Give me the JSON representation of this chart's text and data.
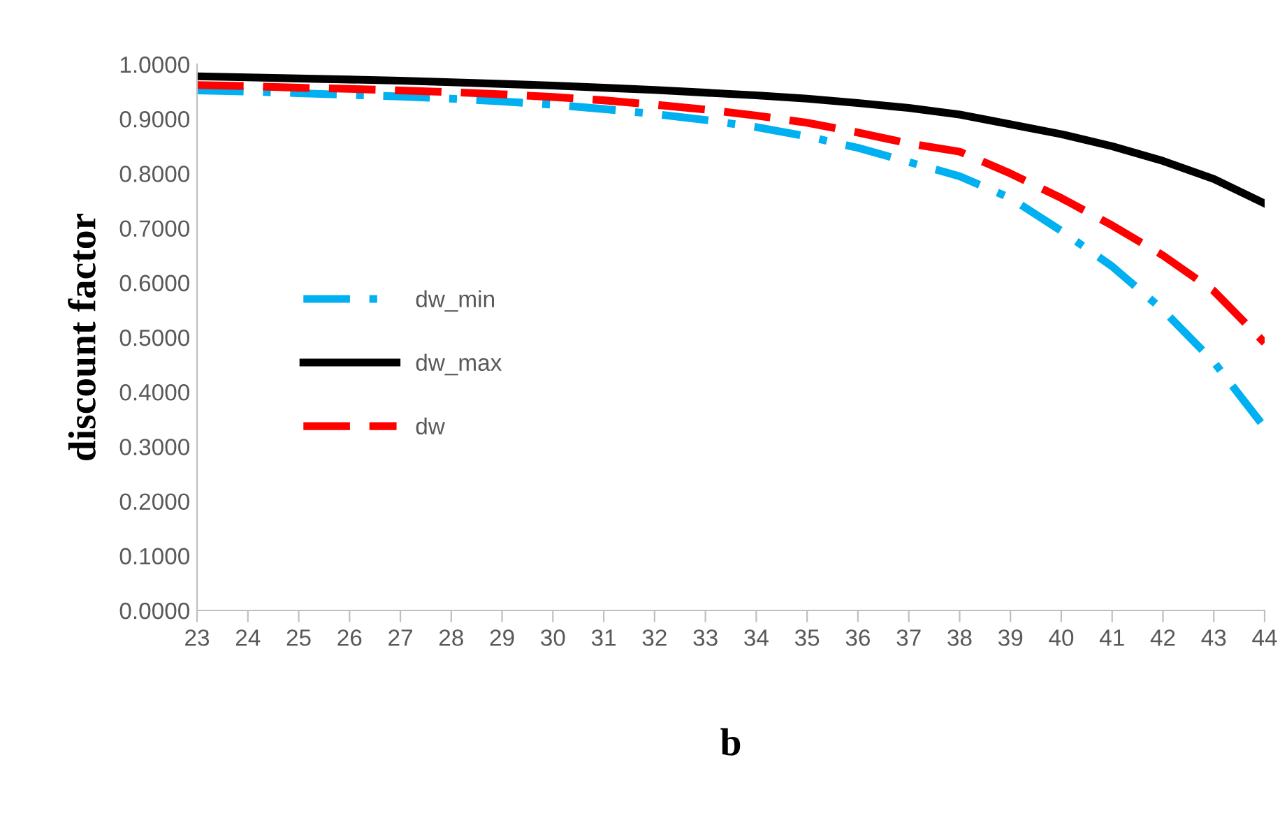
{
  "chart_data": {
    "type": "line",
    "xlabel": "b",
    "ylabel": "discount factor",
    "categories": [
      "23",
      "24",
      "25",
      "26",
      "27",
      "28",
      "29",
      "30",
      "31",
      "32",
      "33",
      "34",
      "35",
      "36",
      "37",
      "38",
      "39",
      "40",
      "41",
      "42",
      "43",
      "44"
    ],
    "series": [
      {
        "name": "dw_min",
        "color": "#00b0f0",
        "line_style": "dashdot",
        "values": [
          0.952,
          0.95,
          0.947,
          0.944,
          0.941,
          0.937,
          0.932,
          0.926,
          0.918,
          0.909,
          0.898,
          0.885,
          0.868,
          0.847,
          0.821,
          0.795,
          0.755,
          0.695,
          0.63,
          0.55,
          0.455,
          0.335
        ]
      },
      {
        "name": "dw_max",
        "color": "#000000",
        "line_style": "solid",
        "values": [
          0.978,
          0.976,
          0.974,
          0.972,
          0.97,
          0.967,
          0.964,
          0.961,
          0.957,
          0.953,
          0.948,
          0.943,
          0.937,
          0.929,
          0.92,
          0.908,
          0.89,
          0.872,
          0.85,
          0.823,
          0.79,
          0.745
        ]
      },
      {
        "name": "dw",
        "color": "#ff0000",
        "line_style": "dashed",
        "values": [
          0.962,
          0.96,
          0.957,
          0.955,
          0.952,
          0.949,
          0.945,
          0.94,
          0.934,
          0.926,
          0.917,
          0.906,
          0.893,
          0.875,
          0.855,
          0.84,
          0.8,
          0.755,
          0.705,
          0.65,
          0.585,
          0.49
        ]
      }
    ],
    "ylim": [
      0,
      1
    ],
    "yticks": [
      {
        "value": 0,
        "label": "0.0000"
      },
      {
        "value": 0.1,
        "label": "0.1000"
      },
      {
        "value": 0.2,
        "label": "0.2000"
      },
      {
        "value": 0.3,
        "label": "0.3000"
      },
      {
        "value": 0.4,
        "label": "0.4000"
      },
      {
        "value": 0.5,
        "label": "0.5000"
      },
      {
        "value": 0.6,
        "label": "0.6000"
      },
      {
        "value": 0.7,
        "label": "0.7000"
      },
      {
        "value": 0.8,
        "label": "0.8000"
      },
      {
        "value": 0.9,
        "label": "0.9000"
      },
      {
        "value": 1,
        "label": "1.0000"
      }
    ],
    "grid": false,
    "legend": "left",
    "marker": "none"
  }
}
